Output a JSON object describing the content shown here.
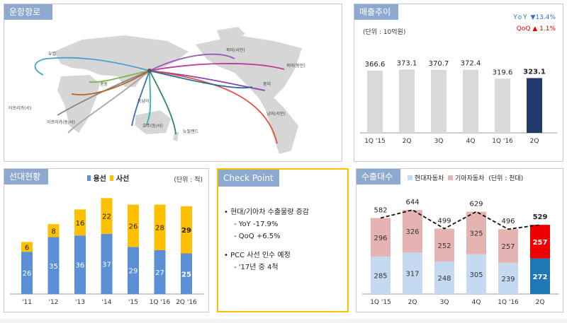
{
  "route_panel": {
    "title": "운항항로",
    "regions": [
      "유럽",
      "중동",
      "동남아",
      "아프리카(서)",
      "아프리카(동/서)",
      "호주(동/서)",
      "뉴질랜드",
      "북미(서안)",
      "북미(동안)",
      "중미",
      "남미(서안)"
    ]
  },
  "sales_panel": {
    "title": "매출추이",
    "unit": "(단위 : 10억원)",
    "yoy_label": "YoY",
    "yoy_arrow": "▼",
    "yoy_value": "13.4%",
    "qoq_label": "QoQ",
    "qoq_arrow": "▲",
    "qoq_value": "1.1%"
  },
  "fleet_panel": {
    "title": "선대현황",
    "legend_a": "용선",
    "legend_b": "사선",
    "unit": "(단위 : 척)"
  },
  "check_panel": {
    "title": "Check Point",
    "bullet1": "• 현대/기아차 수출물량 증감",
    "sub1": "- YoY -17.9%",
    "sub2": "- QoQ +6.5%",
    "bullet2": "• PCC 사선 인수 예정",
    "sub3": "- '17년 중 4척"
  },
  "export_panel": {
    "title": "수출대수",
    "legend_a": "현대자동차",
    "legend_b": "기아자동차",
    "unit": "(단위 : 천대)"
  },
  "colors": {
    "header": "#8ea9d0",
    "gray_bar": "#d9d9d9",
    "navy_bar": "#1f3a6b",
    "blue_bar": "#5b8fd6",
    "gold_bar": "#ffc000",
    "pink_bar": "#e6b3b3",
    "lightblue_bar": "#c5d9f1",
    "red_bar": "#ee0000",
    "teal_bar": "#1f78b4",
    "yoy_color": "#2e75d6",
    "qoq_color": "#e00000",
    "check_border": "#ffc000"
  },
  "chart_data": [
    {
      "type": "bar",
      "title": "매출추이",
      "categories": [
        "1Q '15",
        "2Q",
        "3Q",
        "4Q",
        "1Q '16",
        "2Q"
      ],
      "values": [
        366.6,
        373.1,
        370.7,
        372.4,
        319.6,
        323.1
      ],
      "labels": [
        "366.6",
        "373.1",
        "370.7",
        "372.4",
        "319.6",
        "323.1"
      ]
    },
    {
      "type": "bar",
      "stacked": true,
      "title": "선대현황",
      "categories": [
        "'11",
        "'12",
        "'13",
        "'14",
        "'15",
        "1Q '16",
        "2Q '16"
      ],
      "series": [
        {
          "name": "용선",
          "values": [
            26,
            35,
            36,
            37,
            29,
            27,
            25
          ]
        },
        {
          "name": "사선",
          "values": [
            6,
            8,
            16,
            22,
            26,
            28,
            29
          ]
        }
      ]
    },
    {
      "type": "bar",
      "stacked": true,
      "title": "수출대수",
      "categories": [
        "1Q '15",
        "2Q",
        "3Q",
        "4Q",
        "1Q '16",
        "2Q"
      ],
      "series": [
        {
          "name": "현대자동차",
          "values": [
            285,
            317,
            248,
            305,
            239,
            272
          ]
        },
        {
          "name": "기아자동차",
          "values": [
            296,
            326,
            252,
            325,
            257,
            257
          ]
        }
      ],
      "totals": [
        582,
        644,
        499,
        629,
        496,
        529
      ]
    }
  ]
}
